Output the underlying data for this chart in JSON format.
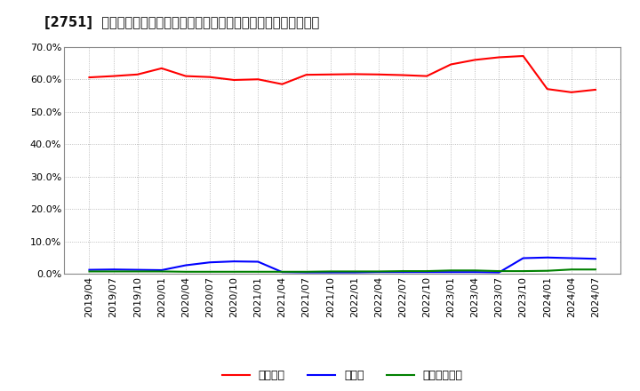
{
  "title": "[2751]  自己資本、のれん、繰延税金資産の総資産に対する比率の推移",
  "background_color": "#ffffff",
  "grid_color": "#aaaaaa",
  "legend_labels": [
    "自己資本",
    "のれん",
    "繰延税金資産"
  ],
  "line_colors": [
    "#ff0000",
    "#0000ff",
    "#008000"
  ],
  "dates": [
    "2019/04",
    "2019/07",
    "2019/10",
    "2020/01",
    "2020/04",
    "2020/07",
    "2020/10",
    "2021/01",
    "2021/04",
    "2021/07",
    "2021/10",
    "2022/01",
    "2022/04",
    "2022/07",
    "2022/10",
    "2023/01",
    "2023/04",
    "2023/07",
    "2023/10",
    "2024/01",
    "2024/04",
    "2024/07"
  ],
  "equity": [
    0.606,
    0.61,
    0.615,
    0.634,
    0.61,
    0.607,
    0.598,
    0.6,
    0.585,
    0.614,
    0.615,
    0.616,
    0.615,
    0.613,
    0.61,
    0.646,
    0.66,
    0.668,
    0.672,
    0.57,
    0.56,
    0.568
  ],
  "goodwill": [
    0.012,
    0.013,
    0.012,
    0.011,
    0.026,
    0.035,
    0.038,
    0.037,
    0.005,
    0.004,
    0.004,
    0.004,
    0.005,
    0.005,
    0.005,
    0.005,
    0.005,
    0.004,
    0.048,
    0.05,
    0.048,
    0.046
  ],
  "deferred_tax": [
    0.007,
    0.007,
    0.007,
    0.007,
    0.006,
    0.006,
    0.006,
    0.006,
    0.006,
    0.006,
    0.007,
    0.007,
    0.007,
    0.008,
    0.008,
    0.01,
    0.01,
    0.008,
    0.008,
    0.009,
    0.013,
    0.013
  ],
  "ylim": [
    0.0,
    0.7
  ],
  "yticks": [
    0.0,
    0.1,
    0.2,
    0.3,
    0.4,
    0.5,
    0.6,
    0.7
  ]
}
